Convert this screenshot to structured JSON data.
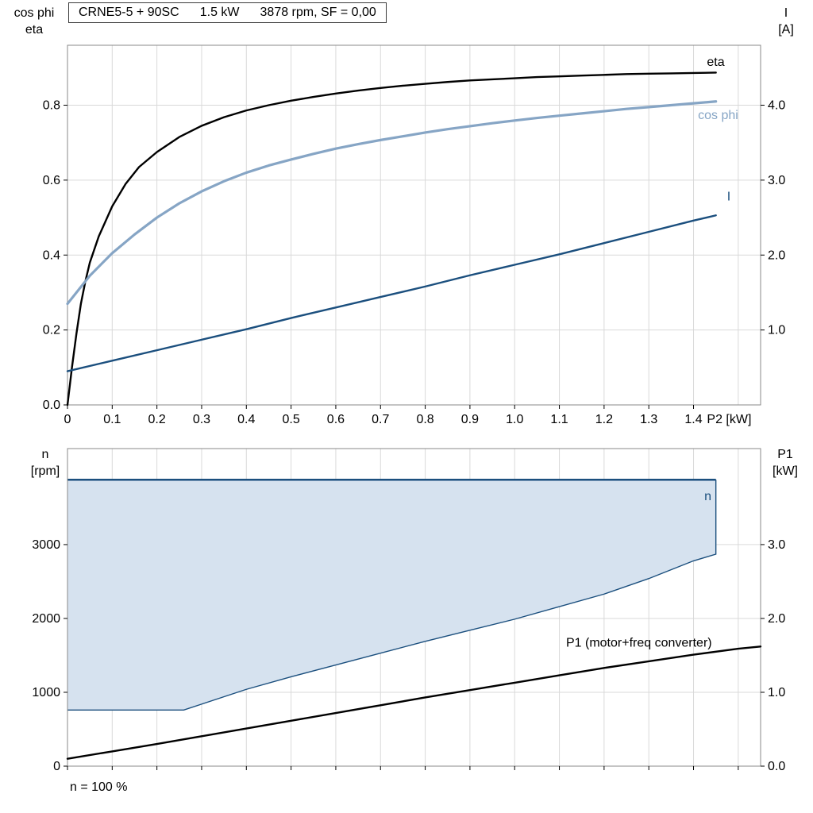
{
  "colors": {
    "eta": "#000000",
    "cos_phi": "#86a5c5",
    "current": "#1b4f7e",
    "p1": "#000000",
    "envelope_fill": "#d6e2ef",
    "envelope_line": "#1b4f7e",
    "grid": "#d9d9d9",
    "frame": "#8a8a8a",
    "text": "#000000"
  },
  "title_box": {
    "parts": [
      "CRNE5-5 + 90SC",
      "1.5 kW",
      "3878 rpm, SF = 0,00"
    ]
  },
  "chart_data": [
    {
      "type": "line",
      "title": "CRNE5-5 + 90SC 1.5 kW 3878 rpm, SF = 0,00",
      "x_axis": {
        "label": "P2 [kW]",
        "label_x": 1.43,
        "min": 0,
        "max": 1.55,
        "ticks": [
          0,
          0.1,
          0.2,
          0.3,
          0.4,
          0.5,
          0.6,
          0.7,
          0.8,
          0.9,
          1.0,
          1.1,
          1.2,
          1.3,
          1.4
        ],
        "tick_labels": [
          "0",
          "0.1",
          "0.2",
          "0.3",
          "0.4",
          "0.5",
          "0.6",
          "0.7",
          "0.8",
          "0.9",
          "1.0",
          "1.1",
          "1.2",
          "1.3",
          "1.4"
        ],
        "grid": [
          0.1,
          0.2,
          0.3,
          0.4,
          0.5,
          0.6,
          0.7,
          0.8,
          0.9,
          1.0,
          1.1,
          1.2,
          1.3,
          1.4,
          1.5
        ]
      },
      "y_left": {
        "header": [
          "cos phi",
          "eta"
        ],
        "min": 0,
        "max": 0.96,
        "ticks": [
          0,
          0.2,
          0.4,
          0.6,
          0.8
        ],
        "tick_labels": [
          "0.0",
          "0.2",
          "0.4",
          "0.6",
          "0.8"
        ],
        "grid": [
          0.2,
          0.4,
          0.6,
          0.8
        ]
      },
      "y_right": {
        "header": [
          "I",
          "[A]"
        ],
        "min": 0,
        "max": 4.8,
        "ticks": [
          1,
          2,
          3,
          4
        ],
        "tick_labels": [
          "1.0",
          "2.0",
          "3.0",
          "4.0"
        ]
      },
      "series": [
        {
          "name": "eta",
          "axis": "left",
          "color_key": "eta",
          "width": 2.4,
          "label": {
            "text": "eta",
            "x": 1.43,
            "y": 0.905,
            "anchor": "start"
          },
          "points": [
            [
              0,
              0
            ],
            [
              0.01,
              0.1
            ],
            [
              0.02,
              0.19
            ],
            [
              0.03,
              0.27
            ],
            [
              0.04,
              0.33
            ],
            [
              0.05,
              0.38
            ],
            [
              0.07,
              0.45
            ],
            [
              0.1,
              0.53
            ],
            [
              0.13,
              0.59
            ],
            [
              0.16,
              0.635
            ],
            [
              0.2,
              0.675
            ],
            [
              0.25,
              0.715
            ],
            [
              0.3,
              0.745
            ],
            [
              0.35,
              0.768
            ],
            [
              0.4,
              0.786
            ],
            [
              0.45,
              0.8
            ],
            [
              0.5,
              0.812
            ],
            [
              0.55,
              0.822
            ],
            [
              0.6,
              0.831
            ],
            [
              0.65,
              0.839
            ],
            [
              0.7,
              0.846
            ],
            [
              0.75,
              0.852
            ],
            [
              0.8,
              0.857
            ],
            [
              0.85,
              0.862
            ],
            [
              0.9,
              0.866
            ],
            [
              0.95,
              0.869
            ],
            [
              1.0,
              0.872
            ],
            [
              1.05,
              0.875
            ],
            [
              1.1,
              0.877
            ],
            [
              1.15,
              0.879
            ],
            [
              1.2,
              0.881
            ],
            [
              1.25,
              0.883
            ],
            [
              1.3,
              0.884
            ],
            [
              1.35,
              0.885
            ],
            [
              1.4,
              0.886
            ],
            [
              1.45,
              0.887
            ]
          ]
        },
        {
          "name": "cos phi",
          "axis": "left",
          "color_key": "cos_phi",
          "width": 3.2,
          "label": {
            "text": "cos phi",
            "x": 1.41,
            "y": 0.763,
            "anchor": "start"
          },
          "points": [
            [
              0,
              0.27
            ],
            [
              0.05,
              0.345
            ],
            [
              0.1,
              0.405
            ],
            [
              0.15,
              0.455
            ],
            [
              0.2,
              0.5
            ],
            [
              0.25,
              0.538
            ],
            [
              0.3,
              0.57
            ],
            [
              0.35,
              0.597
            ],
            [
              0.4,
              0.62
            ],
            [
              0.45,
              0.639
            ],
            [
              0.5,
              0.655
            ],
            [
              0.55,
              0.67
            ],
            [
              0.6,
              0.684
            ],
            [
              0.65,
              0.696
            ],
            [
              0.7,
              0.707
            ],
            [
              0.75,
              0.717
            ],
            [
              0.8,
              0.727
            ],
            [
              0.85,
              0.736
            ],
            [
              0.9,
              0.744
            ],
            [
              0.95,
              0.752
            ],
            [
              1.0,
              0.759
            ],
            [
              1.05,
              0.766
            ],
            [
              1.1,
              0.772
            ],
            [
              1.15,
              0.778
            ],
            [
              1.2,
              0.784
            ],
            [
              1.25,
              0.79
            ],
            [
              1.3,
              0.795
            ],
            [
              1.35,
              0.8
            ],
            [
              1.4,
              0.805
            ],
            [
              1.45,
              0.81
            ]
          ]
        },
        {
          "name": "I",
          "axis": "right",
          "color_key": "current",
          "width": 2.4,
          "label": {
            "text": "I",
            "x": 1.475,
            "y": 2.73,
            "anchor": "start"
          },
          "points": [
            [
              0,
              0.45
            ],
            [
              0.1,
              0.59
            ],
            [
              0.2,
              0.73
            ],
            [
              0.3,
              0.87
            ],
            [
              0.4,
              1.01
            ],
            [
              0.5,
              1.16
            ],
            [
              0.6,
              1.3
            ],
            [
              0.7,
              1.44
            ],
            [
              0.8,
              1.58
            ],
            [
              0.9,
              1.73
            ],
            [
              1.0,
              1.87
            ],
            [
              1.1,
              2.01
            ],
            [
              1.2,
              2.16
            ],
            [
              1.3,
              2.31
            ],
            [
              1.4,
              2.46
            ],
            [
              1.45,
              2.53
            ]
          ]
        }
      ]
    },
    {
      "type": "area",
      "title": "Speed range and input power",
      "x_axis": {
        "min": 0,
        "max": 1.55,
        "ticks": [
          0,
          0.1,
          0.2,
          0.3,
          0.4,
          0.5,
          0.6,
          0.7,
          0.8,
          0.9,
          1.0,
          1.1,
          1.2,
          1.3,
          1.4,
          1.5
        ],
        "grid": [
          0.1,
          0.2,
          0.3,
          0.4,
          0.5,
          0.6,
          0.7,
          0.8,
          0.9,
          1.0,
          1.1,
          1.2,
          1.3,
          1.4,
          1.5
        ]
      },
      "y_left": {
        "header": [
          "n",
          "[rpm]"
        ],
        "min": 0,
        "max": 4300,
        "ticks": [
          0,
          1000,
          2000,
          3000
        ],
        "tick_labels": [
          "0",
          "1000",
          "2000",
          "3000"
        ],
        "grid": [
          1000,
          2000,
          3000
        ]
      },
      "y_right": {
        "header": [
          "P1",
          "[kW]"
        ],
        "min": 0,
        "max": 4.3,
        "ticks": [
          0,
          1,
          2,
          3
        ],
        "tick_labels": [
          "0.0",
          "1.0",
          "2.0",
          "3.0"
        ]
      },
      "envelope": {
        "upper": [
          [
            0,
            3878
          ],
          [
            1.45,
            3878
          ]
        ],
        "lower": [
          [
            0,
            760
          ],
          [
            0.26,
            760
          ],
          [
            0.3,
            840
          ],
          [
            0.4,
            1040
          ],
          [
            0.5,
            1210
          ],
          [
            0.6,
            1370
          ],
          [
            0.7,
            1530
          ],
          [
            0.8,
            1690
          ],
          [
            0.9,
            1840
          ],
          [
            1.0,
            1990
          ],
          [
            1.1,
            2160
          ],
          [
            1.2,
            2330
          ],
          [
            1.3,
            2540
          ],
          [
            1.4,
            2780
          ],
          [
            1.45,
            2870
          ]
        ]
      },
      "series": [
        {
          "name": "P1 (motor+freq converter)",
          "axis": "right",
          "color_key": "p1",
          "width": 2.4,
          "label": {
            "text": "P1 (motor+freq converter)",
            "x": 1.115,
            "y": 1.62,
            "anchor": "start"
          },
          "points": [
            [
              0,
              0.1
            ],
            [
              0.1,
              0.2
            ],
            [
              0.2,
              0.3
            ],
            [
              0.3,
              0.405
            ],
            [
              0.4,
              0.51
            ],
            [
              0.5,
              0.615
            ],
            [
              0.6,
              0.72
            ],
            [
              0.7,
              0.825
            ],
            [
              0.8,
              0.93
            ],
            [
              0.9,
              1.03
            ],
            [
              1.0,
              1.13
            ],
            [
              1.1,
              1.23
            ],
            [
              1.2,
              1.33
            ],
            [
              1.3,
              1.42
            ],
            [
              1.4,
              1.51
            ],
            [
              1.5,
              1.59
            ],
            [
              1.55,
              1.62
            ]
          ]
        }
      ],
      "annotations": [
        {
          "text": "n",
          "x": 1.44,
          "y": 3600,
          "axis": "left",
          "color_key": "current",
          "anchor": "end"
        }
      ],
      "footnote": "n = 100 %"
    }
  ]
}
